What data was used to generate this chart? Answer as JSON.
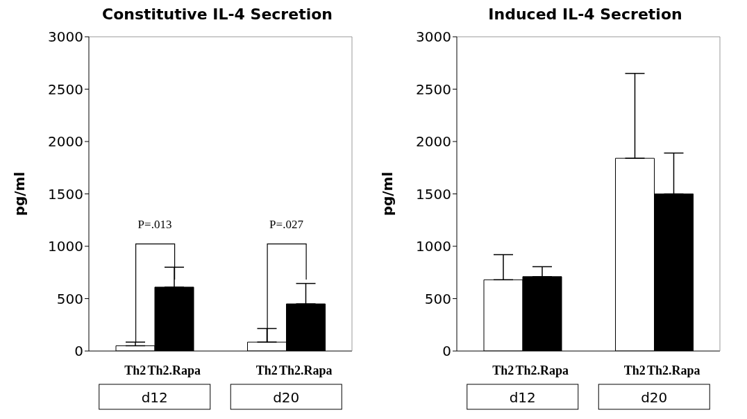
{
  "chart_data": [
    {
      "type": "bar",
      "title": "Constitutive IL-4 Secretion",
      "ylabel": "pg/ml",
      "categories": [
        "d12",
        "d20"
      ],
      "series": [
        {
          "name": "Th2",
          "color": "#ffffff",
          "values": [
            50,
            85
          ],
          "errors": [
            [
              50,
              85
            ],
            [
              85,
              215
            ]
          ]
        },
        {
          "name": "Th2.Rapa",
          "color": "#000000",
          "values": [
            610,
            450
          ],
          "errors": [
            [
              610,
              800
            ],
            [
              450,
              645
            ]
          ]
        }
      ],
      "ylim": [
        0,
        3000
      ],
      "yticks": [
        0,
        500,
        1000,
        1500,
        2000,
        2500,
        3000
      ],
      "grid": false,
      "legend": false,
      "annotations": [
        "P=.013",
        "P=.027"
      ]
    },
    {
      "type": "bar",
      "title": "Induced IL-4 Secretion",
      "ylabel": "pg/ml",
      "categories": [
        "d12",
        "d20"
      ],
      "series": [
        {
          "name": "Th2",
          "color": "#ffffff",
          "values": [
            680,
            1840
          ],
          "errors": [
            [
              680,
              920
            ],
            [
              1840,
              2650
            ]
          ]
        },
        {
          "name": "Th2.Rapa",
          "color": "#000000",
          "values": [
            710,
            1500
          ],
          "errors": [
            [
              710,
              805
            ],
            [
              1500,
              1890
            ]
          ]
        }
      ],
      "ylim": [
        0,
        3000
      ],
      "yticks": [
        0,
        500,
        1000,
        1500,
        2000,
        2500,
        3000
      ],
      "grid": false,
      "legend": false
    }
  ]
}
